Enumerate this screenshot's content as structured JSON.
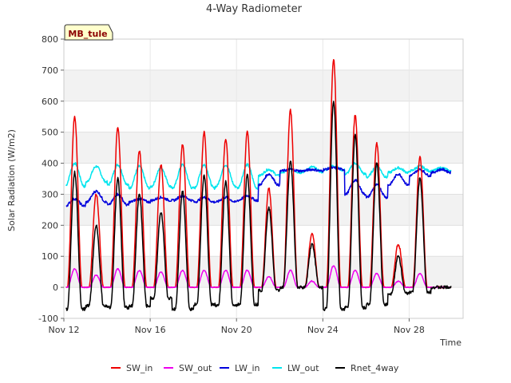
{
  "chart_data": {
    "type": "line",
    "title": "4-Way Radiometer",
    "xlabel": "Time",
    "ylabel": "Solar Radiation (W/m2)",
    "badge": "MB_tule",
    "ylim": [
      -100,
      800
    ],
    "yticks": [
      -100,
      0,
      100,
      200,
      300,
      400,
      500,
      600,
      700,
      800
    ],
    "xlim": [
      12,
      30.5
    ],
    "xticks": [
      {
        "x": 12,
        "label": "Nov 12"
      },
      {
        "x": 16,
        "label": "Nov 16"
      },
      {
        "x": 20,
        "label": "Nov 20"
      },
      {
        "x": 24,
        "label": "Nov 24"
      },
      {
        "x": 28,
        "label": "Nov 28"
      }
    ],
    "grid": true,
    "legend_position": "bottom",
    "days": [
      12.5,
      13.5,
      14.5,
      15.5,
      16.5,
      17.5,
      18.5,
      19.5,
      20.5,
      21.5,
      22.5,
      23.5,
      24.5,
      25.5,
      26.5,
      27.5,
      28.5,
      29.5
    ],
    "series": [
      {
        "name": "SW_in",
        "color": "#ee0000",
        "peaks": [
          550,
          300,
          515,
          440,
          395,
          460,
          500,
          480,
          500,
          320,
          570,
          175,
          735,
          555,
          465,
          140,
          420,
          0
        ]
      },
      {
        "name": "SW_out",
        "color": "#ee00ee",
        "peaks": [
          60,
          40,
          60,
          55,
          50,
          55,
          55,
          55,
          55,
          35,
          55,
          20,
          70,
          55,
          45,
          20,
          45,
          0
        ]
      },
      {
        "name": "LW_in",
        "color": "#0000dd",
        "night": [
          262,
          275,
          265,
          275,
          280,
          280,
          275,
          275,
          280,
          330,
          375,
          375,
          380,
          300,
          290,
          330,
          360,
          370
        ],
        "day": [
          285,
          310,
          300,
          285,
          290,
          295,
          290,
          290,
          295,
          365,
          380,
          380,
          385,
          345,
          330,
          365,
          380,
          380
        ]
      },
      {
        "name": "LW_out",
        "color": "#00e5ee",
        "night": [
          325,
          340,
          330,
          320,
          325,
          320,
          320,
          325,
          320,
          360,
          370,
          372,
          378,
          365,
          355,
          370,
          375,
          375
        ],
        "day": [
          400,
          390,
          395,
          390,
          385,
          395,
          395,
          395,
          395,
          380,
          380,
          388,
          392,
          400,
          390,
          385,
          390,
          385
        ]
      },
      {
        "name": "Rnet_4way",
        "color": "#000000",
        "night": [
          -70,
          -60,
          -65,
          -60,
          -35,
          -70,
          -55,
          -60,
          -55,
          -10,
          0,
          0,
          -70,
          -65,
          -55,
          -20,
          -15,
          0
        ],
        "peaks": [
          370,
          200,
          350,
          300,
          240,
          310,
          360,
          340,
          360,
          255,
          405,
          140,
          600,
          490,
          400,
          100,
          350,
          0
        ]
      }
    ]
  }
}
